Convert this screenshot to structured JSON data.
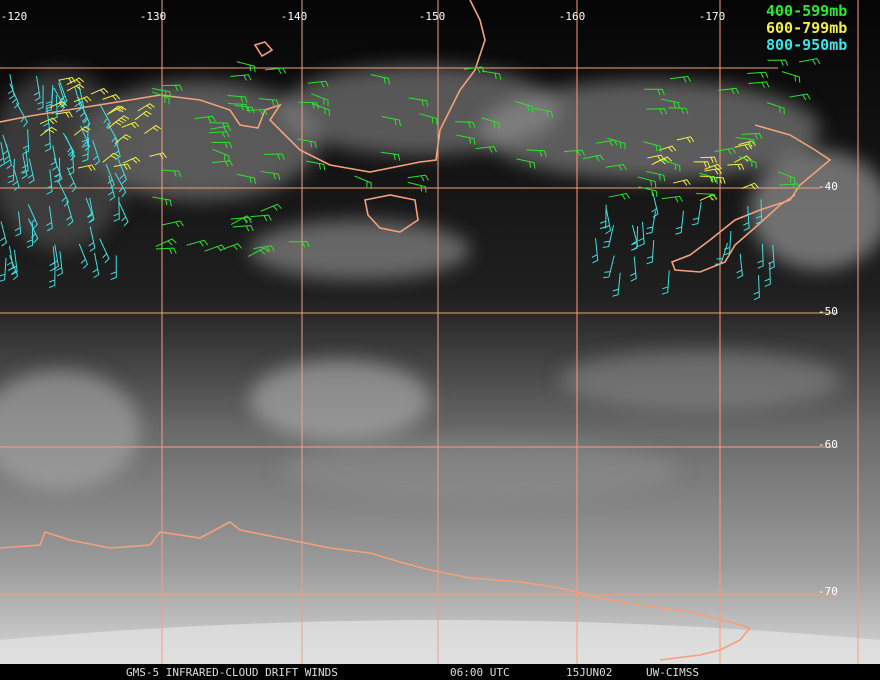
{
  "grid": {
    "longitude_labels": [
      "-120",
      "-130",
      "-140",
      "-150",
      "-160",
      "-170"
    ],
    "latitude_labels": [
      "-40",
      "-50",
      "-60",
      "-70"
    ]
  },
  "legend": [
    "400-599mb",
    "600-799mb",
    "800-950mb"
  ],
  "footer": [
    "GMS-5 INFRARED-CLOUD DRIFT WINDS",
    "06:00 UTC",
    "15JUN02",
    "UW-CIMSS"
  ]
}
